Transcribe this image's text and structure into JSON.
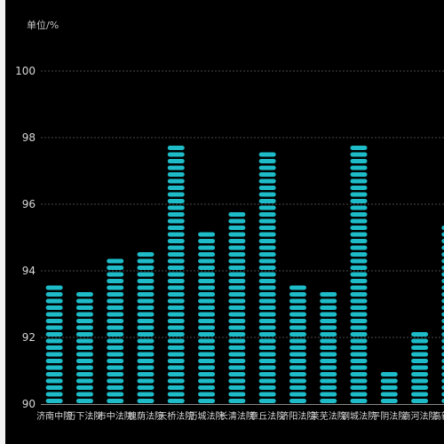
{
  "chart_data": {
    "type": "bar",
    "unit_label": "单位/%",
    "categories": [
      "济南中院",
      "历下法院",
      "市中法院",
      "槐荫法院",
      "天桥法院",
      "历城法院",
      "长清法院",
      "章丘法院",
      "济阳法院",
      "莱芜法院",
      "钢城法院",
      "平阴法院",
      "商河法院",
      "高新法院"
    ],
    "tick_labels": [
      "济南中院",
      "历下法院",
      "市中法院",
      "槐荫法院",
      "天桥法院",
      "历城法院",
      "长清法院",
      "章丘法院",
      "济阳法院",
      "莱芜法院",
      "钢城法院",
      "平阴法院",
      "商河法院",
      "高新法院"
    ],
    "values": [
      93.7,
      93.5,
      94.4,
      94.7,
      97.8,
      95.2,
      95.9,
      97.6,
      93.7,
      93.5,
      97.8,
      91.1,
      92.3,
      95.4
    ],
    "y_ticks": [
      90,
      92,
      94,
      96,
      98,
      100
    ],
    "ylim": [
      90,
      100
    ],
    "grid": true,
    "colors": {
      "bar": "#1dbcc8",
      "grid": "#4a4a4a",
      "text": "#d8d8d8",
      "background": "#000000",
      "axis": "#888888"
    }
  }
}
